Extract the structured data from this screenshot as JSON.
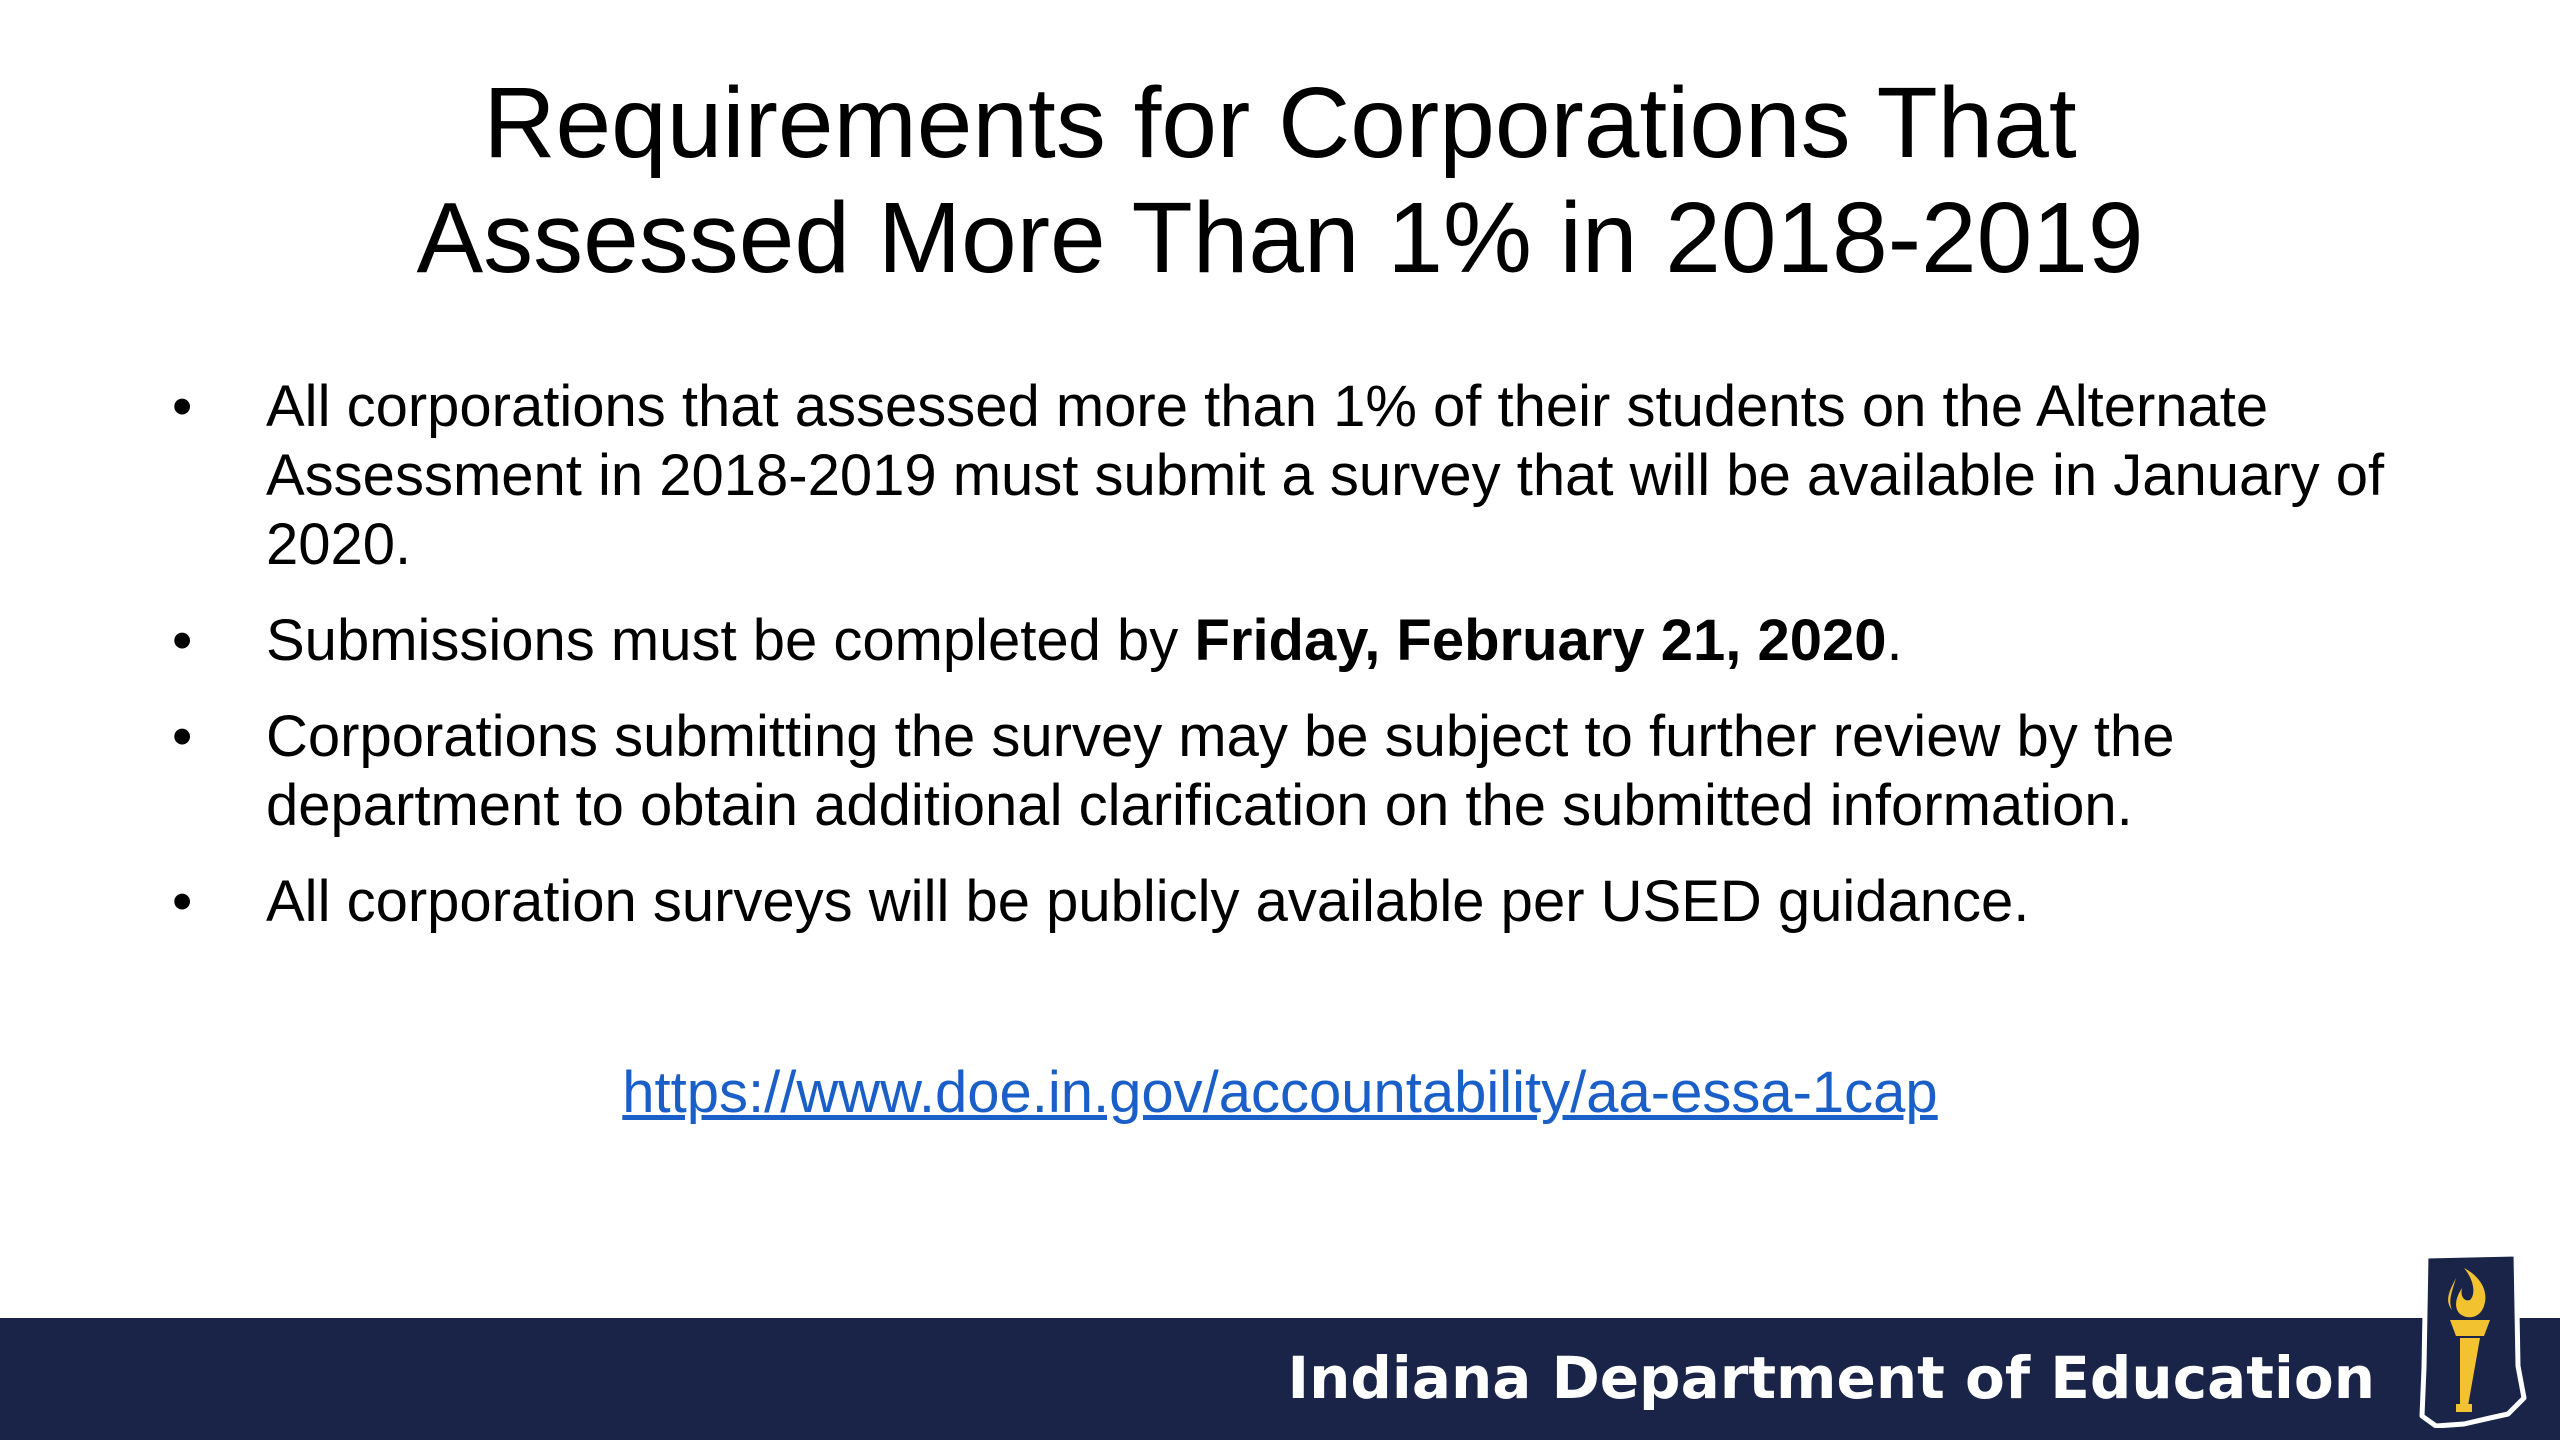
{
  "slide": {
    "title_lines": [
      "Requirements for Corporations That",
      "Assessed More Than 1% in 2018-2019"
    ],
    "bullet_marker": "•",
    "bullets": [
      {
        "text_before": "All corporations that assessed more than 1% of their students on the Alternate Assessment in 2018-2019 must submit a survey that will be available in January of 2020.",
        "bold": "",
        "text_after": ""
      },
      {
        "text_before": "Submissions must be completed by ",
        "bold": "Friday, February 21, 2020",
        "text_after": "."
      },
      {
        "text_before": "Corporations submitting the survey may be subject to further review by the department to obtain additional clarification on the submitted information.",
        "bold": "",
        "text_after": ""
      },
      {
        "text_before": "All corporation surveys will be publicly available per USED guidance.",
        "bold": "",
        "text_after": ""
      }
    ],
    "link_text": "https://www.doe.in.gov/accountability/aa-essa-1cap"
  },
  "footer": {
    "org_name": "Indiana Department of Education",
    "logo_icon": "indiana-torch-logo-icon"
  },
  "colors": {
    "footer_bg": "#192448",
    "link": "#1a5fc7",
    "logo_gold": "#f2c230"
  }
}
